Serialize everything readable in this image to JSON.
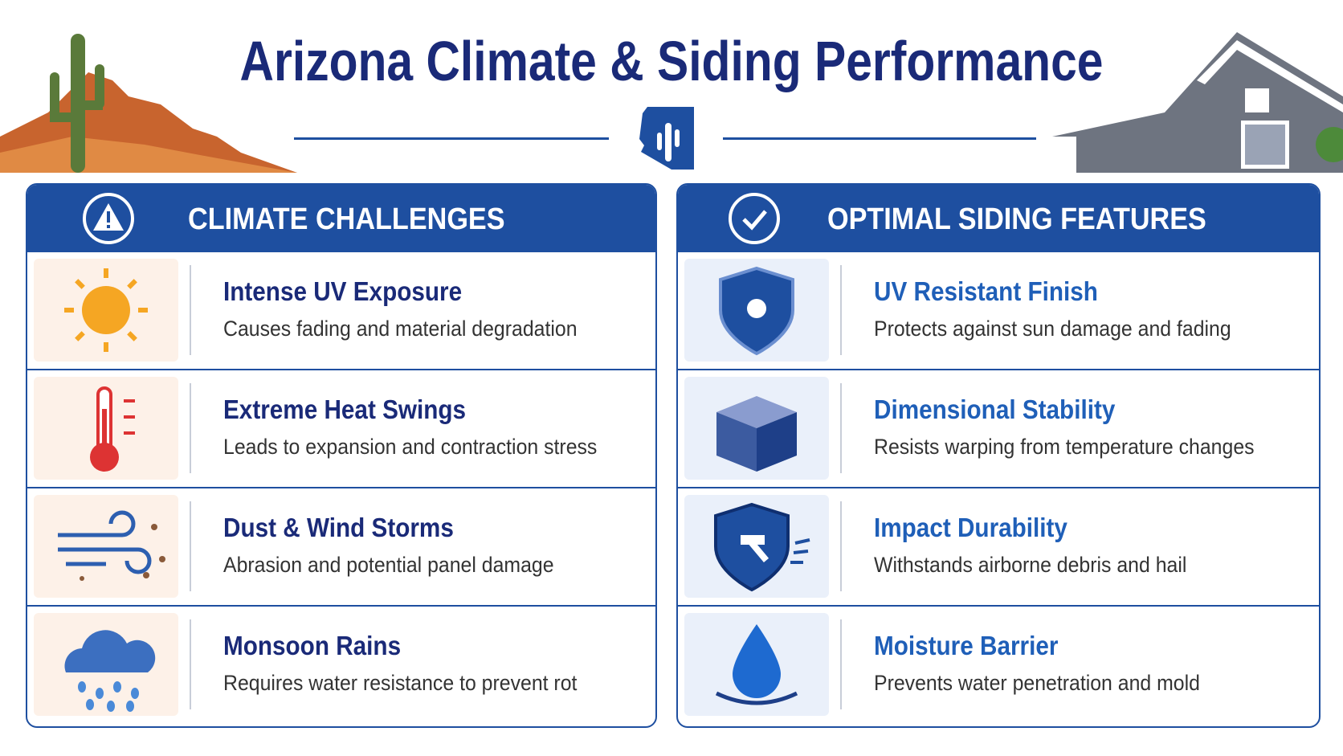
{
  "title": "Arizona Climate & Siding Performance",
  "challenges": {
    "heading": "CLIMATE CHALLENGES",
    "items": [
      {
        "title": "Intense UV Exposure",
        "description": "Causes fading and material degradation"
      },
      {
        "title": "Extreme Heat Swings",
        "description": "Leads to expansion and contraction stress"
      },
      {
        "title": "Dust & Wind Storms",
        "description": "Abrasion and potential panel damage"
      },
      {
        "title": "Monsoon Rains",
        "description": "Requires water resistance to prevent rot"
      }
    ]
  },
  "features": {
    "heading": "OPTIMAL SIDING FEATURES",
    "items": [
      {
        "title": "UV Resistant Finish",
        "description": "Protects against sun damage and fading"
      },
      {
        "title": "Dimensional Stability",
        "description": "Resists warping from temperature changes"
      },
      {
        "title": "Impact Durability",
        "description": "Withstands airborne debris and hail"
      },
      {
        "title": "Moisture Barrier",
        "description": "Prevents water penetration and mold"
      }
    ]
  }
}
